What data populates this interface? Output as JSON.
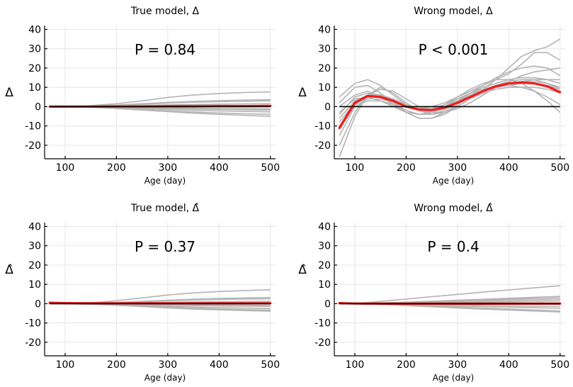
{
  "chart_data": [
    {
      "type": "line",
      "title": "True model, Δ",
      "ylabel": "Δ",
      "xlabel": "Age (day)",
      "annotation": "P = 0.84",
      "xlim": [
        60,
        510
      ],
      "ylim": [
        -27,
        42
      ],
      "xticks": [
        100,
        200,
        300,
        400,
        500
      ],
      "yticks": [
        -20,
        -10,
        0,
        10,
        20,
        30,
        40
      ],
      "x": [
        70,
        100,
        150,
        200,
        250,
        300,
        350,
        400,
        450,
        500
      ],
      "series": [
        {
          "name": "sim-1",
          "color": "#b4b4b4",
          "values": [
            0,
            0,
            0.5,
            1.5,
            3,
            4.8,
            6,
            6.8,
            7.3,
            7.6
          ]
        },
        {
          "name": "sim-2",
          "color": "#b4b4b4",
          "values": [
            0,
            0,
            0.2,
            0.6,
            1.2,
            1.8,
            2.3,
            2.6,
            2.8,
            3
          ]
        },
        {
          "name": "sim-3",
          "color": "#b4b4b4",
          "values": [
            0,
            0,
            0.1,
            0.3,
            0.6,
            0.9,
            1.1,
            1.3,
            1.4,
            1.5
          ]
        },
        {
          "name": "sim-4",
          "color": "#b4b4b4",
          "values": [
            0,
            0,
            -0.1,
            -0.3,
            -0.6,
            -0.9,
            -1.2,
            -1.4,
            -1.6,
            -1.8
          ]
        },
        {
          "name": "sim-5",
          "color": "#b4b4b4",
          "values": [
            0,
            0,
            -0.2,
            -0.5,
            -1,
            -1.5,
            -1.9,
            -2.2,
            -2.5,
            -2.7
          ]
        },
        {
          "name": "sim-6",
          "color": "#b4b4b4",
          "values": [
            0,
            0,
            -0.3,
            -0.8,
            -1.5,
            -2.2,
            -2.8,
            -3.3,
            -3.7,
            -4
          ]
        },
        {
          "name": "sim-7",
          "color": "#b4b4b4",
          "values": [
            0,
            0,
            -0.3,
            -1,
            -1.8,
            -2.6,
            -3.4,
            -4,
            -4.5,
            -5
          ]
        },
        {
          "name": "sim-8",
          "color": "#b4b4b4",
          "values": [
            0,
            0,
            0.3,
            0.8,
            1.5,
            2.2,
            2.7,
            3.1,
            3.4,
            3.6
          ]
        },
        {
          "name": "sim-9",
          "color": "#b4b4b4",
          "values": [
            0,
            0,
            -0.1,
            -0.2,
            -0.4,
            -0.6,
            -0.8,
            -1,
            -1.1,
            -1.2
          ]
        },
        {
          "name": "observed",
          "color": "#ee1c1c",
          "values": [
            0,
            0,
            0,
            0.1,
            0.1,
            0.2,
            0.2,
            0.3,
            0.3,
            0.4
          ]
        },
        {
          "name": "zero",
          "color": "#000000",
          "values": [
            0,
            0,
            0,
            0,
            0,
            0,
            0,
            0,
            0,
            0
          ]
        }
      ]
    },
    {
      "type": "line",
      "title": "Wrong model, Δ",
      "ylabel": "Δ",
      "xlabel": "Age (day)",
      "annotation": "P < 0.001",
      "xlim": [
        60,
        510
      ],
      "ylim": [
        -27,
        42
      ],
      "xticks": [
        100,
        200,
        300,
        400,
        500
      ],
      "yticks": [
        -20,
        -10,
        0,
        10,
        20,
        30,
        40
      ],
      "x": [
        70,
        100,
        125,
        150,
        175,
        200,
        225,
        250,
        275,
        300,
        325,
        350,
        375,
        400,
        425,
        450,
        475,
        500
      ],
      "series": [
        {
          "name": "sim-1",
          "color": "#b4b4b4",
          "values": [
            -26,
            -5,
            6,
            10,
            7,
            2,
            -2,
            -4,
            -3,
            0,
            4,
            9,
            14,
            20,
            26,
            29,
            31,
            35
          ]
        },
        {
          "name": "sim-2",
          "color": "#b4b4b4",
          "values": [
            -15,
            0,
            4,
            4,
            2,
            0,
            -1,
            0,
            2,
            5,
            8,
            11,
            14,
            17,
            22,
            28,
            28,
            24
          ]
        },
        {
          "name": "sim-3",
          "color": "#b4b4b4",
          "values": [
            -8,
            2,
            6,
            6,
            3,
            0,
            -2,
            -2,
            0,
            3,
            7,
            11,
            15,
            18,
            20,
            21,
            20,
            16
          ]
        },
        {
          "name": "sim-4",
          "color": "#b4b4b4",
          "values": [
            -3,
            4,
            5,
            3,
            0,
            -3,
            -4,
            -3,
            0,
            4,
            7,
            9,
            10,
            11,
            10,
            8,
            5,
            1
          ]
        },
        {
          "name": "sim-5",
          "color": "#b4b4b4",
          "values": [
            5,
            12,
            14,
            11,
            6,
            1,
            -2,
            -2,
            1,
            5,
            9,
            12,
            14,
            14,
            12,
            8,
            3,
            -3
          ]
        },
        {
          "name": "sim-6",
          "color": "#b4b4b4",
          "values": [
            -20,
            -3,
            6,
            9,
            8,
            4,
            0,
            -3,
            -3,
            -1,
            2,
            6,
            10,
            13,
            16,
            18,
            19,
            20
          ]
        },
        {
          "name": "sim-7",
          "color": "#b4b4b4",
          "values": [
            -12,
            1,
            5,
            5,
            2,
            -2,
            -4,
            -4,
            -2,
            2,
            6,
            9,
            11,
            12,
            13,
            14,
            14,
            14
          ]
        },
        {
          "name": "sim-8",
          "color": "#b4b4b4",
          "values": [
            0,
            6,
            8,
            5,
            1,
            -3,
            -6,
            -6,
            -4,
            0,
            4,
            7,
            9,
            10,
            10,
            10,
            9,
            7
          ]
        },
        {
          "name": "sim-9",
          "color": "#b4b4b4",
          "values": [
            -6,
            3,
            6,
            6,
            4,
            1,
            -1,
            -1,
            1,
            4,
            7,
            10,
            12,
            14,
            15,
            15,
            14,
            12
          ]
        },
        {
          "name": "sim-10",
          "color": "#b4b4b4",
          "values": [
            2,
            10,
            11,
            7,
            2,
            -3,
            -6,
            -6,
            -3,
            1,
            5,
            8,
            10,
            11,
            12,
            12,
            11,
            9
          ]
        },
        {
          "name": "sim-11",
          "color": "#b4b4b4",
          "values": [
            -10,
            0,
            3,
            3,
            1,
            -2,
            -4,
            -3,
            -1,
            3,
            6,
            9,
            11,
            12,
            13,
            13,
            12,
            10
          ]
        },
        {
          "name": "sim-12",
          "color": "#b4b4b4",
          "values": [
            -4,
            5,
            7,
            6,
            3,
            0,
            -2,
            -3,
            -1,
            2,
            5,
            8,
            11,
            13,
            14,
            14,
            12,
            9
          ]
        },
        {
          "name": "observed",
          "color": "#ee1c1c",
          "values": [
            -11,
            2,
            5.5,
            5,
            3,
            0,
            -1.5,
            -1.8,
            -0.5,
            2,
            5,
            8,
            10.5,
            12,
            12.5,
            12,
            10.5,
            7.5
          ]
        },
        {
          "name": "zero",
          "color": "#000000",
          "values": [
            0,
            0,
            0,
            0,
            0,
            0,
            0,
            0,
            0,
            0,
            0,
            0,
            0,
            0,
            0,
            0,
            0,
            0
          ]
        }
      ]
    },
    {
      "type": "line",
      "title": "True model, Δ̂",
      "ylabel": "Δ̂",
      "xlabel": "Age (day)",
      "annotation": "P = 0.37",
      "xlim": [
        60,
        510
      ],
      "ylim": [
        -27,
        42
      ],
      "xticks": [
        100,
        200,
        300,
        400,
        500
      ],
      "yticks": [
        -20,
        -10,
        0,
        10,
        20,
        30,
        40
      ],
      "x": [
        70,
        100,
        150,
        200,
        250,
        300,
        350,
        400,
        450,
        500
      ],
      "series": [
        {
          "name": "sim-1",
          "color": "#b4b4b4",
          "values": [
            0,
            0,
            0.4,
            1.5,
            3,
            4.5,
            5.6,
            6.3,
            6.8,
            7.2
          ]
        },
        {
          "name": "sim-2",
          "color": "#b4b4b4",
          "values": [
            0,
            0,
            0.2,
            0.5,
            1,
            1.5,
            1.9,
            2.2,
            2.4,
            2.5
          ]
        },
        {
          "name": "sim-3",
          "color": "#b4b4b4",
          "values": [
            0,
            0,
            0.1,
            0.3,
            0.5,
            0.7,
            0.9,
            1,
            1.1,
            1.2
          ]
        },
        {
          "name": "sim-4",
          "color": "#b4b4b4",
          "values": [
            0,
            0,
            -0.1,
            -0.3,
            -0.5,
            -0.8,
            -1,
            -1.2,
            -1.3,
            -1.4
          ]
        },
        {
          "name": "sim-5",
          "color": "#b4b4b4",
          "values": [
            0,
            0,
            -0.2,
            -0.5,
            -1,
            -1.4,
            -1.8,
            -2.1,
            -2.3,
            -2.5
          ]
        },
        {
          "name": "sim-6",
          "color": "#b4b4b4",
          "values": [
            0,
            0,
            -0.2,
            -0.7,
            -1.3,
            -1.9,
            -2.4,
            -2.8,
            -3.1,
            -3.3
          ]
        },
        {
          "name": "sim-7",
          "color": "#b4b4b4",
          "values": [
            0,
            0,
            -0.3,
            -0.8,
            -1.5,
            -2.2,
            -2.8,
            -3.2,
            -3.6,
            -3.9
          ]
        },
        {
          "name": "sim-8",
          "color": "#b4b4b4",
          "values": [
            0,
            0,
            0.2,
            0.6,
            1.2,
            1.8,
            2.3,
            2.7,
            3,
            3.2
          ]
        },
        {
          "name": "sim-9",
          "color": "#b4b4b4",
          "values": [
            0,
            0,
            -0.1,
            -0.2,
            -0.3,
            -0.5,
            -0.6,
            -0.7,
            -0.8,
            -0.9
          ]
        },
        {
          "name": "observed",
          "color": "#ee1c1c",
          "values": [
            0.5,
            0.3,
            0.2,
            0.2,
            0.2,
            0.2,
            0.2,
            0.2,
            0.2,
            0.2
          ]
        },
        {
          "name": "zero",
          "color": "#000000",
          "values": [
            0,
            0,
            0,
            0,
            0,
            0,
            0,
            0,
            0,
            0
          ]
        }
      ]
    },
    {
      "type": "line",
      "title": "Wrong model, Δ̂",
      "ylabel": "Δ̂",
      "xlabel": "Age (day)",
      "annotation": "P = 0.4",
      "xlim": [
        60,
        510
      ],
      "ylim": [
        -27,
        42
      ],
      "xticks": [
        100,
        200,
        300,
        400,
        500
      ],
      "yticks": [
        -20,
        -10,
        0,
        10,
        20,
        30,
        40
      ],
      "x": [
        70,
        100,
        150,
        200,
        250,
        300,
        350,
        400,
        450,
        500
      ],
      "series": [
        {
          "name": "sim-1",
          "color": "#b4b4b4",
          "values": [
            0,
            0,
            1.2,
            2.4,
            3.6,
            4.8,
            6,
            7.1,
            8.2,
            9.3
          ]
        },
        {
          "name": "sim-2",
          "color": "#b4b4b4",
          "values": [
            0,
            0,
            0.4,
            0.8,
            1.3,
            1.8,
            2.3,
            2.8,
            3.3,
            3.8
          ]
        },
        {
          "name": "sim-3",
          "color": "#b4b4b4",
          "values": [
            0,
            0,
            0.2,
            0.5,
            0.8,
            1.1,
            1.4,
            1.7,
            2,
            2.3
          ]
        },
        {
          "name": "sim-4",
          "color": "#b4b4b4",
          "values": [
            0,
            0,
            -0.2,
            -0.5,
            -0.8,
            -1.2,
            -1.5,
            -1.8,
            -2.1,
            -2.4
          ]
        },
        {
          "name": "sim-5",
          "color": "#b4b4b4",
          "values": [
            0,
            0,
            -0.3,
            -0.8,
            -1.3,
            -1.8,
            -2.3,
            -2.8,
            -3.3,
            -3.8
          ]
        },
        {
          "name": "sim-6",
          "color": "#b4b4b4",
          "values": [
            0,
            0,
            -0.4,
            -1,
            -1.6,
            -2.2,
            -2.8,
            -3.3,
            -3.8,
            -4.3
          ]
        },
        {
          "name": "sim-7",
          "color": "#b4b4b4",
          "values": [
            0,
            0,
            0.3,
            0.7,
            1.1,
            1.5,
            1.9,
            2.3,
            2.7,
            3.1
          ]
        },
        {
          "name": "sim-8",
          "color": "#b4b4b4",
          "values": [
            0,
            0,
            -0.1,
            -0.3,
            -0.5,
            -0.7,
            -0.9,
            -1.1,
            -1.3,
            -1.5
          ]
        },
        {
          "name": "sim-9",
          "color": "#b4b4b4",
          "values": [
            0,
            0,
            0.1,
            0.2,
            0.4,
            0.6,
            0.8,
            1,
            1.2,
            1.4
          ]
        },
        {
          "name": "observed",
          "color": "#ee1c1c",
          "values": [
            0.3,
            0.1,
            0,
            0,
            0,
            0,
            0,
            0,
            0,
            0
          ]
        },
        {
          "name": "zero",
          "color": "#000000",
          "values": [
            0,
            0,
            0,
            0,
            0,
            0,
            0,
            0,
            0,
            0
          ]
        }
      ]
    }
  ]
}
